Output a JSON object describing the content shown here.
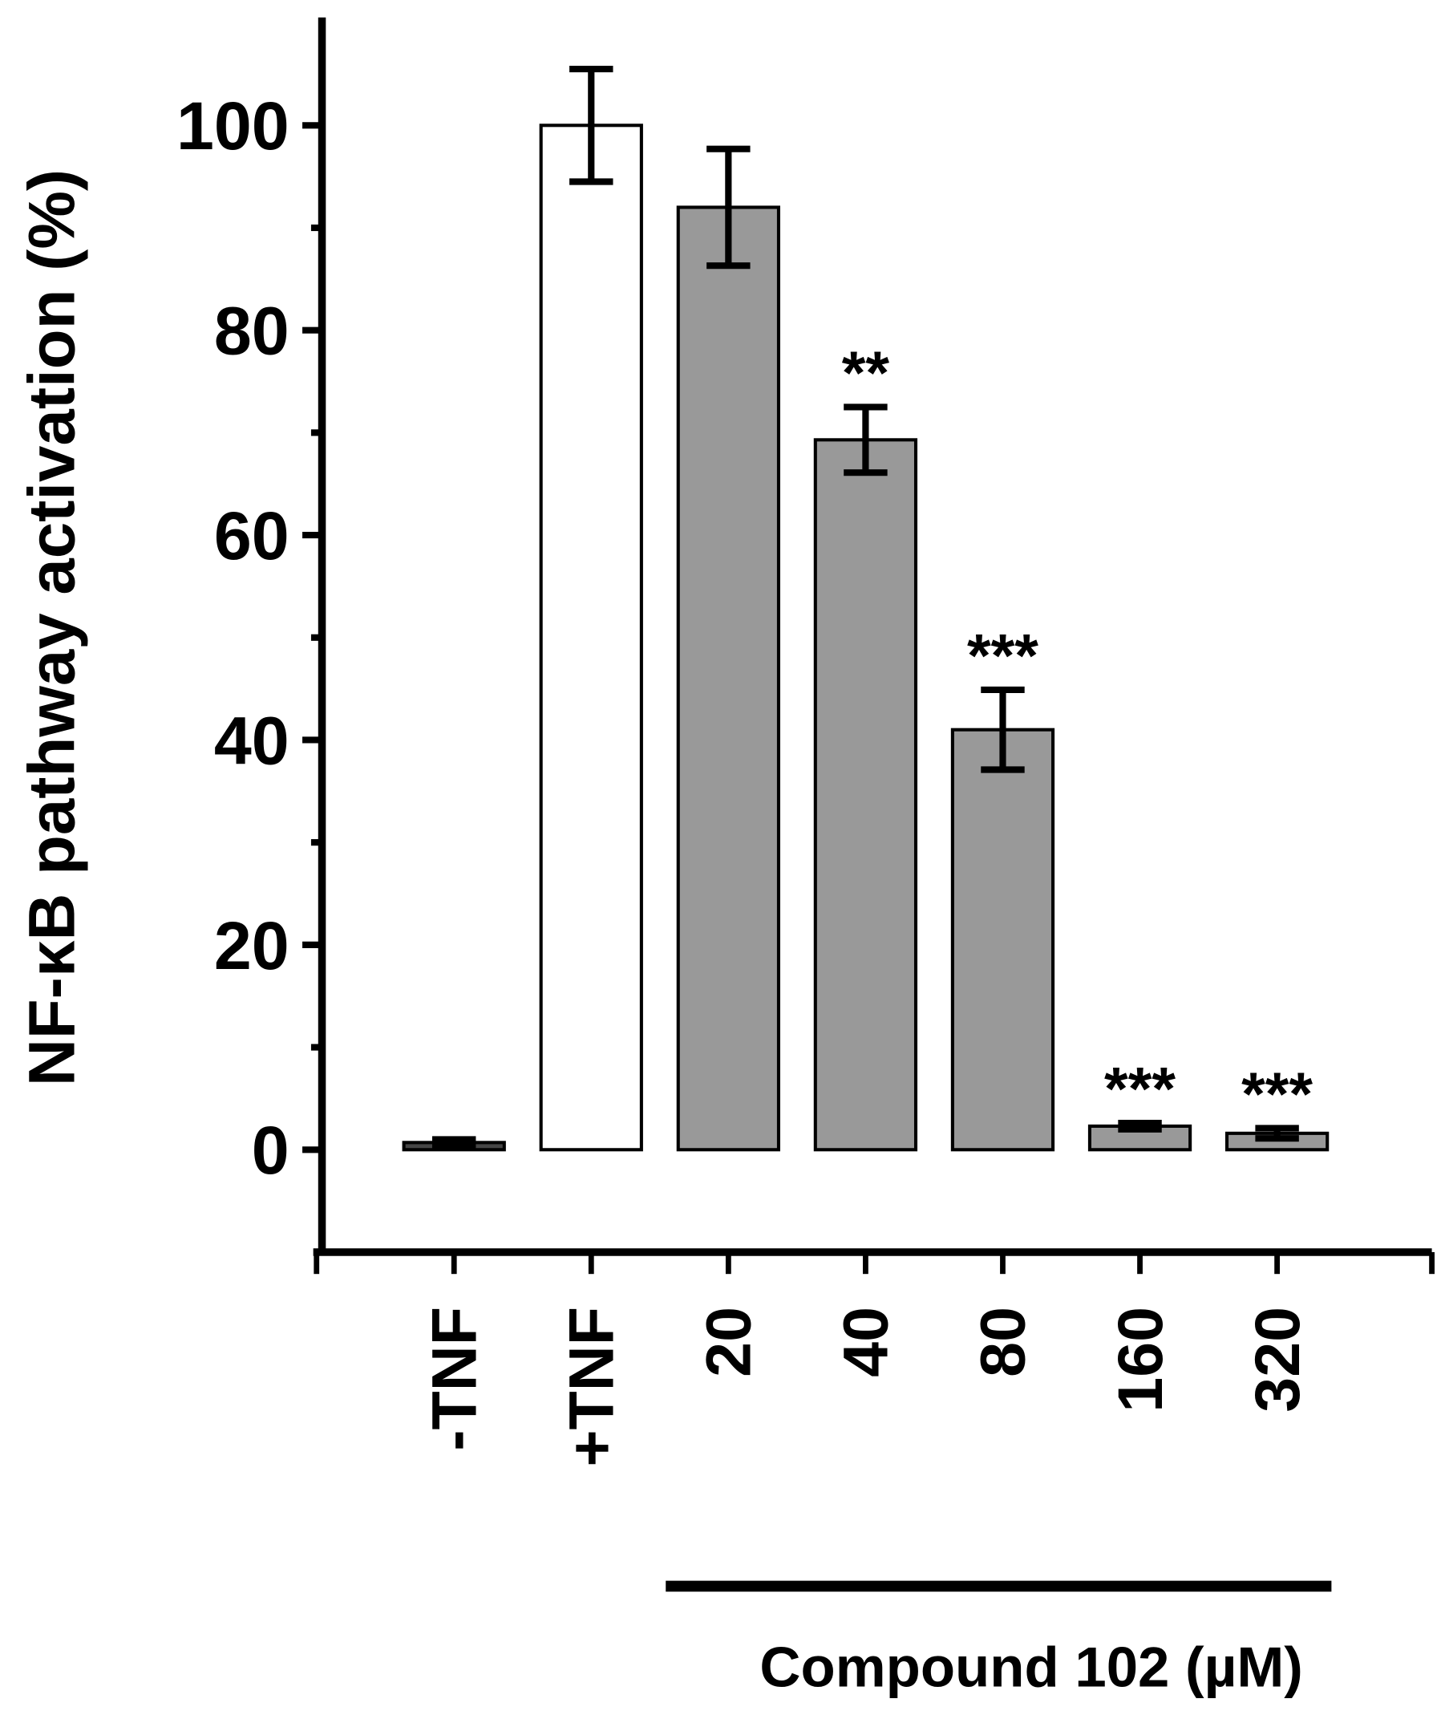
{
  "chart_data": {
    "type": "bar",
    "ylabel": "NF-κB pathway activation (%)",
    "xlabel": "Compound 102 (µM)",
    "categories": [
      "-TNF",
      "+TNF",
      "20",
      "40",
      "80",
      "160",
      "320"
    ],
    "values": [
      0.7,
      100,
      92,
      69.3,
      41,
      2.3,
      1.6
    ],
    "errors": [
      0.3,
      5.5,
      5.7,
      3.2,
      3.9,
      0.3,
      0.5
    ],
    "colors": [
      "#454545",
      "#ffffff",
      "#999999",
      "#999999",
      "#999999",
      "#999999",
      "#999999"
    ],
    "value_annotations": [
      null,
      null,
      null,
      "**",
      "***",
      "***",
      "***"
    ],
    "ylim": [
      -10,
      110
    ],
    "yticks": [
      0,
      20,
      40,
      60,
      80,
      100
    ],
    "yminorticks": [
      10,
      30,
      50,
      70,
      90
    ]
  }
}
